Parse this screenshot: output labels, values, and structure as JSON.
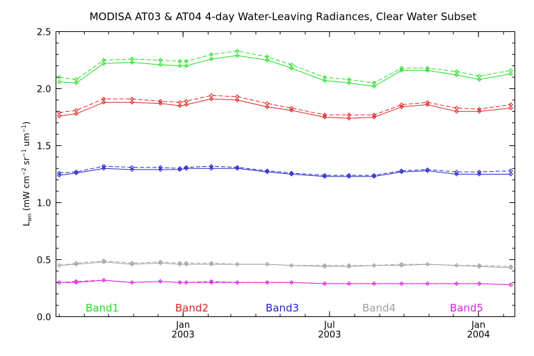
{
  "chart_data": {
    "type": "line",
    "title": "MODISA AT03 & AT04 4-day Water-Leaving Radiances, Clear Water Subset",
    "ylabel": "L_wn (mW cm^-2 sr^-1 um^-1)",
    "ylabel_parts": {
      "main": "L",
      "sub": "wn",
      "units_a": " (mW cm",
      "sup_a": "−2",
      "units_b": " sr",
      "sup_b": "−1",
      "units_c": " um",
      "sup_c": "−1",
      "units_d": ")"
    },
    "xlabel": "",
    "ylim": [
      0.0,
      2.5
    ],
    "y_ticks": [
      {
        "value": 0.0,
        "label": "0.0"
      },
      {
        "value": 0.5,
        "label": "0.5"
      },
      {
        "value": 1.0,
        "label": "1.0"
      },
      {
        "value": 1.5,
        "label": "1.5"
      },
      {
        "value": 2.0,
        "label": "2.0"
      },
      {
        "value": 2.5,
        "label": "2.5"
      }
    ],
    "xlim": [
      "2002-07-28",
      "2004-02-15"
    ],
    "x_ticks": [
      {
        "date": "2003-01-01",
        "line1": "Jan",
        "line2": "2003"
      },
      {
        "date": "2003-07-01",
        "line1": "Jul",
        "line2": "2003"
      },
      {
        "date": "2004-01-01",
        "line1": "Jan",
        "line2": "2004"
      }
    ],
    "x": [
      "2002-08-01",
      "2002-08-22",
      "2002-09-25",
      "2002-10-30",
      "2002-12-04",
      "2002-12-28",
      "2003-01-05",
      "2003-02-05",
      "2003-03-09",
      "2003-04-15",
      "2003-05-15",
      "2003-06-25",
      "2003-07-25",
      "2003-08-25",
      "2003-09-28",
      "2003-10-30",
      "2003-12-05",
      "2004-01-02",
      "2004-02-10"
    ],
    "series": [
      {
        "name": "Band1",
        "color": "#22dd22",
        "at03": [
          2.06,
          2.05,
          2.22,
          2.23,
          2.21,
          2.2,
          2.2,
          2.26,
          2.29,
          2.25,
          2.18,
          2.07,
          2.05,
          2.02,
          2.16,
          2.16,
          2.12,
          2.08,
          2.13
        ],
        "at04": [
          2.1,
          2.08,
          2.25,
          2.26,
          2.25,
          2.24,
          2.24,
          2.3,
          2.33,
          2.28,
          2.21,
          2.1,
          2.08,
          2.05,
          2.18,
          2.18,
          2.15,
          2.11,
          2.16
        ]
      },
      {
        "name": "Band2",
        "color": "#dd2222",
        "at03": [
          1.76,
          1.78,
          1.88,
          1.88,
          1.87,
          1.85,
          1.86,
          1.91,
          1.9,
          1.84,
          1.81,
          1.75,
          1.74,
          1.75,
          1.84,
          1.86,
          1.8,
          1.8,
          1.83
        ],
        "at04": [
          1.79,
          1.81,
          1.91,
          1.91,
          1.89,
          1.88,
          1.89,
          1.94,
          1.93,
          1.87,
          1.83,
          1.77,
          1.77,
          1.77,
          1.86,
          1.88,
          1.83,
          1.82,
          1.86
        ]
      },
      {
        "name": "Band3",
        "color": "#2222cc",
        "at03": [
          1.24,
          1.26,
          1.3,
          1.29,
          1.29,
          1.29,
          1.3,
          1.3,
          1.3,
          1.27,
          1.25,
          1.23,
          1.23,
          1.23,
          1.27,
          1.28,
          1.25,
          1.25,
          1.25
        ],
        "at04": [
          1.26,
          1.27,
          1.32,
          1.31,
          1.31,
          1.3,
          1.31,
          1.32,
          1.31,
          1.28,
          1.26,
          1.24,
          1.24,
          1.24,
          1.28,
          1.29,
          1.27,
          1.27,
          1.28
        ]
      },
      {
        "name": "Band4",
        "color": "#a0a0a0",
        "at03": [
          0.45,
          0.46,
          0.48,
          0.46,
          0.47,
          0.46,
          0.46,
          0.46,
          0.46,
          0.46,
          0.45,
          0.44,
          0.44,
          0.45,
          0.45,
          0.46,
          0.45,
          0.44,
          0.43
        ],
        "at04": [
          0.45,
          0.47,
          0.49,
          0.47,
          0.48,
          0.47,
          0.47,
          0.47,
          0.46,
          0.46,
          0.45,
          0.45,
          0.45,
          0.45,
          0.46,
          0.46,
          0.45,
          0.45,
          0.44
        ]
      },
      {
        "name": "Band5",
        "color": "#dd22dd",
        "at03": [
          0.3,
          0.3,
          0.32,
          0.3,
          0.31,
          0.3,
          0.3,
          0.3,
          0.3,
          0.3,
          0.3,
          0.29,
          0.29,
          0.29,
          0.29,
          0.29,
          0.29,
          0.29,
          0.28
        ],
        "at04": [
          0.3,
          0.31,
          0.32,
          0.3,
          0.31,
          0.3,
          0.3,
          0.31,
          0.3,
          0.3,
          0.3,
          0.29,
          0.29,
          0.29,
          0.29,
          0.29,
          0.29,
          0.29,
          0.28
        ]
      }
    ],
    "line_styles": {
      "at03": "solid",
      "at04": "dashed"
    },
    "grid": false,
    "legend_placement": "bottom, inside plot, one label per band"
  }
}
